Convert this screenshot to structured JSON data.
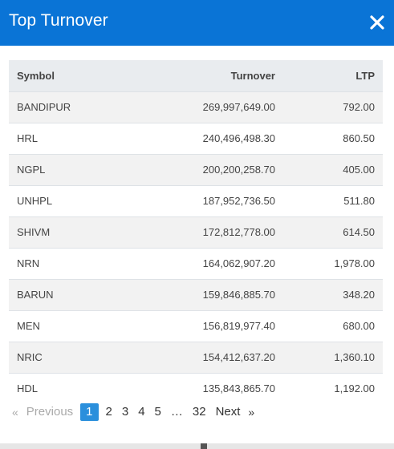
{
  "modal": {
    "title": "Top Turnover",
    "close_icon": "close-icon"
  },
  "table": {
    "headers": {
      "symbol": "Symbol",
      "turnover": "Turnover",
      "ltp": "LTP"
    },
    "rows": [
      {
        "symbol": "BANDIPUR",
        "turnover": "269,997,649.00",
        "ltp": "792.00"
      },
      {
        "symbol": "HRL",
        "turnover": "240,496,498.30",
        "ltp": "860.50"
      },
      {
        "symbol": "NGPL",
        "turnover": "200,200,258.70",
        "ltp": "405.00"
      },
      {
        "symbol": "UNHPL",
        "turnover": "187,952,736.50",
        "ltp": "511.80"
      },
      {
        "symbol": "SHIVM",
        "turnover": "172,812,778.00",
        "ltp": "614.50"
      },
      {
        "symbol": "NRN",
        "turnover": "164,062,907.20",
        "ltp": "1,978.00"
      },
      {
        "symbol": "BARUN",
        "turnover": "159,846,885.70",
        "ltp": "348.20"
      },
      {
        "symbol": "MEN",
        "turnover": "156,819,977.40",
        "ltp": "680.00"
      },
      {
        "symbol": "NRIC",
        "turnover": "154,412,637.20",
        "ltp": "1,360.10"
      },
      {
        "symbol": "HDL",
        "turnover": "135,843,865.70",
        "ltp": "1,192.00"
      }
    ]
  },
  "pagination": {
    "prev_arrow": "«",
    "previous": "Previous",
    "pages": [
      "1",
      "2",
      "3",
      "4",
      "5"
    ],
    "ellipsis": "…",
    "last_page": "32",
    "next": "Next",
    "next_arrow": "»",
    "current": "1"
  },
  "colors": {
    "header_bg": "#0a74d6",
    "active_page": "#2a8fdc"
  }
}
